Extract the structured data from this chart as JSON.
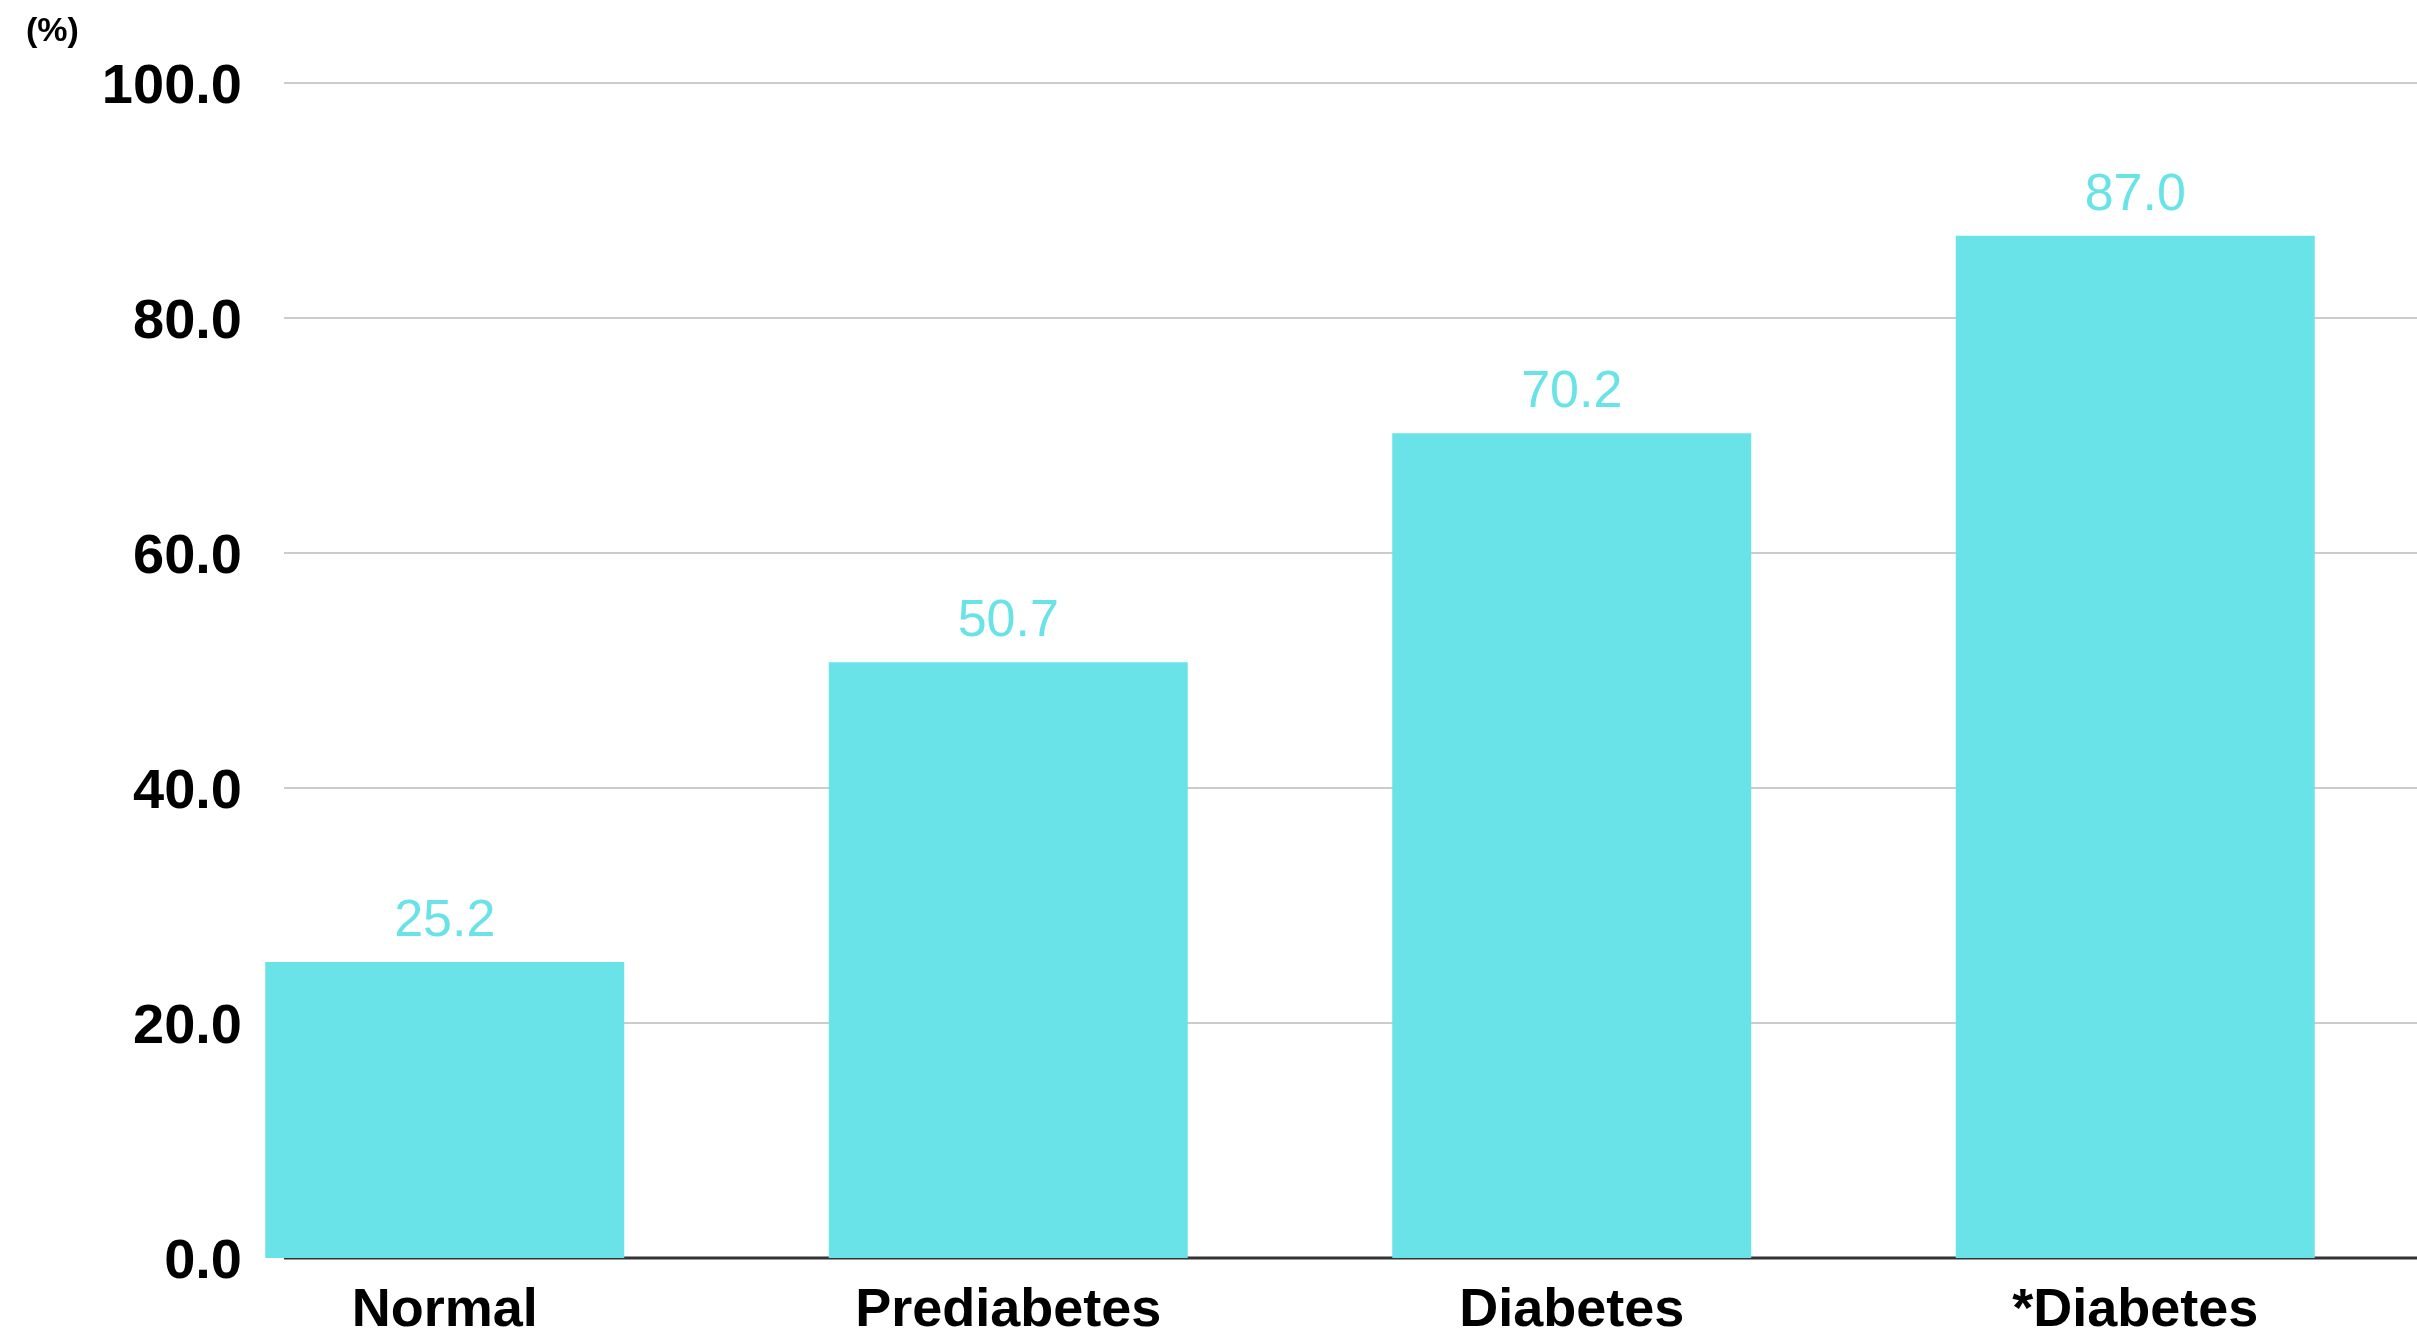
{
  "chart_data": {
    "type": "bar",
    "ylabel": "(%)",
    "categories": [
      "Normal",
      "Prediabetes",
      "Diabetes",
      "*Diabetes"
    ],
    "values": [
      25.2,
      50.7,
      70.2,
      87.0
    ],
    "value_labels": [
      "25.2",
      "50.7",
      "70.2",
      "87.0"
    ],
    "color": "#6ae3e8",
    "ylim": [
      0,
      100
    ],
    "yticks": [
      {
        "value": 0,
        "label": "0.0"
      },
      {
        "value": 20,
        "label": "20.0"
      },
      {
        "value": 40,
        "label": "40.0"
      },
      {
        "value": 60,
        "label": "60.0"
      },
      {
        "value": 80,
        "label": "80.0"
      },
      {
        "value": 100,
        "label": "100.0"
      }
    ],
    "grid": "y"
  }
}
